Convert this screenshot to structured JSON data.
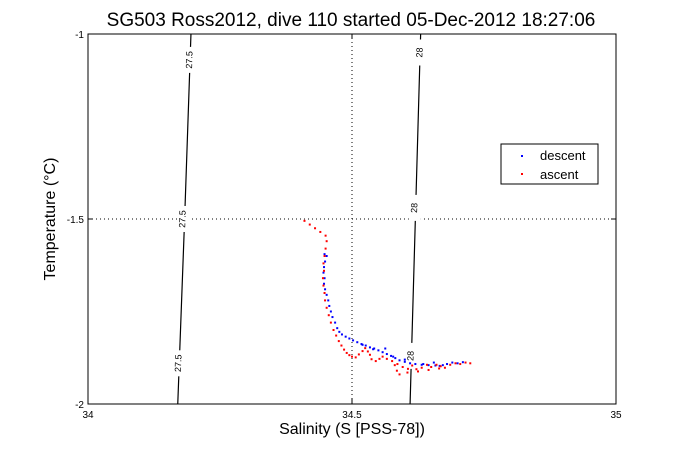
{
  "chart_data": {
    "type": "scatter",
    "title": "SG503 Ross2012, dive 110 started 05-Dec-2012 18:27:06",
    "xlabel": "Salinity (S [PSS-78])",
    "ylabel": "Temperature (°C)",
    "xlim": [
      34,
      35
    ],
    "ylim": [
      -2,
      -1
    ],
    "xticks": [
      "34",
      "34.5",
      "35"
    ],
    "yticks": [
      "-2",
      "-1.5",
      "-1"
    ],
    "grid": "dotted",
    "legend_position": "right",
    "colors": {
      "descent": "#0000ff",
      "ascent": "#ff0000",
      "contour": "#000000"
    },
    "contours": [
      {
        "level": "27.5",
        "points": [
          [
            34.195,
            -1.0
          ],
          [
            34.183,
            -1.5
          ],
          [
            34.17,
            -2.0
          ]
        ],
        "labels": [
          [
            34.193,
            -1.07
          ],
          [
            34.18,
            -1.5
          ],
          [
            34.172,
            -1.89
          ]
        ]
      },
      {
        "level": "28",
        "points": [
          [
            34.63,
            -1.0
          ],
          [
            34.62,
            -1.5
          ],
          [
            34.61,
            -2.0
          ]
        ],
        "labels": [
          [
            34.629,
            -1.05
          ],
          [
            34.619,
            -1.47
          ],
          [
            34.612,
            -1.87
          ]
        ]
      }
    ],
    "series": [
      {
        "name": "descent",
        "points": [
          [
            34.448,
            -1.595
          ],
          [
            34.452,
            -1.6
          ],
          [
            34.449,
            -1.615
          ],
          [
            34.447,
            -1.63
          ],
          [
            34.446,
            -1.645
          ],
          [
            34.448,
            -1.66
          ],
          [
            34.447,
            -1.675
          ],
          [
            34.449,
            -1.69
          ],
          [
            34.452,
            -1.705
          ],
          [
            34.455,
            -1.72
          ],
          [
            34.457,
            -1.735
          ],
          [
            34.46,
            -1.75
          ],
          [
            34.463,
            -1.765
          ],
          [
            34.468,
            -1.78
          ],
          [
            34.472,
            -1.795
          ],
          [
            34.476,
            -1.805
          ],
          [
            34.481,
            -1.812
          ],
          [
            34.488,
            -1.818
          ],
          [
            34.495,
            -1.823
          ],
          [
            34.502,
            -1.828
          ],
          [
            34.51,
            -1.833
          ],
          [
            34.518,
            -1.838
          ],
          [
            34.526,
            -1.842
          ],
          [
            34.534,
            -1.847
          ],
          [
            34.542,
            -1.85
          ],
          [
            34.55,
            -1.855
          ],
          [
            34.558,
            -1.86
          ],
          [
            34.566,
            -1.865
          ],
          [
            34.574,
            -1.87
          ],
          [
            34.582,
            -1.876
          ],
          [
            34.59,
            -1.882
          ],
          [
            34.6,
            -1.886
          ],
          [
            34.61,
            -1.89
          ],
          [
            34.62,
            -1.892
          ],
          [
            34.632,
            -1.894
          ],
          [
            34.645,
            -1.895
          ],
          [
            34.658,
            -1.896
          ],
          [
            34.666,
            -1.897
          ],
          [
            34.672,
            -1.895
          ],
          [
            34.68,
            -1.892
          ],
          [
            34.69,
            -1.888
          ],
          [
            34.7,
            -1.89
          ],
          [
            34.71,
            -1.887
          ],
          [
            34.52,
            -1.84
          ],
          [
            34.54,
            -1.852
          ],
          [
            34.563,
            -1.85
          ],
          [
            34.578,
            -1.872
          ],
          [
            34.6,
            -1.88
          ],
          [
            34.635,
            -1.892
          ],
          [
            34.655,
            -1.888
          ]
        ]
      },
      {
        "name": "ascent",
        "points": [
          [
            34.41,
            -1.505
          ],
          [
            34.42,
            -1.515
          ],
          [
            34.43,
            -1.525
          ],
          [
            34.44,
            -1.535
          ],
          [
            34.45,
            -1.545
          ],
          [
            34.452,
            -1.56
          ],
          [
            34.45,
            -1.58
          ],
          [
            34.448,
            -1.6
          ],
          [
            34.446,
            -1.62
          ],
          [
            34.447,
            -1.64
          ],
          [
            34.445,
            -1.66
          ],
          [
            34.446,
            -1.68
          ],
          [
            34.448,
            -1.7
          ],
          [
            34.449,
            -1.72
          ],
          [
            34.452,
            -1.74
          ],
          [
            34.456,
            -1.76
          ],
          [
            34.46,
            -1.78
          ],
          [
            34.465,
            -1.8
          ],
          [
            34.47,
            -1.815
          ],
          [
            34.475,
            -1.83
          ],
          [
            34.48,
            -1.842
          ],
          [
            34.485,
            -1.853
          ],
          [
            34.49,
            -1.862
          ],
          [
            34.495,
            -1.868
          ],
          [
            34.5,
            -1.872
          ],
          [
            34.507,
            -1.874
          ],
          [
            34.513,
            -1.866
          ],
          [
            34.52,
            -1.857
          ],
          [
            34.525,
            -1.849
          ],
          [
            34.53,
            -1.858
          ],
          [
            34.534,
            -1.867
          ],
          [
            34.537,
            -1.879
          ],
          [
            34.545,
            -1.884
          ],
          [
            34.552,
            -1.878
          ],
          [
            34.558,
            -1.872
          ],
          [
            34.566,
            -1.878
          ],
          [
            34.576,
            -1.884
          ],
          [
            34.586,
            -1.892
          ],
          [
            34.596,
            -1.9
          ],
          [
            34.606,
            -1.905
          ],
          [
            34.614,
            -1.896
          ],
          [
            34.622,
            -1.906
          ],
          [
            34.632,
            -1.902
          ],
          [
            34.642,
            -1.894
          ],
          [
            34.65,
            -1.9
          ],
          [
            34.66,
            -1.894
          ],
          [
            34.668,
            -1.898
          ],
          [
            34.676,
            -1.902
          ],
          [
            34.686,
            -1.894
          ],
          [
            34.696,
            -1.89
          ],
          [
            34.705,
            -1.892
          ],
          [
            34.715,
            -1.888
          ],
          [
            34.724,
            -1.89
          ],
          [
            34.581,
            -1.895
          ],
          [
            34.585,
            -1.91
          ],
          [
            34.59,
            -1.92
          ],
          [
            34.605,
            -1.915
          ],
          [
            34.625,
            -1.912
          ],
          [
            34.645,
            -1.908
          ],
          [
            34.665,
            -1.904
          ]
        ]
      }
    ]
  }
}
